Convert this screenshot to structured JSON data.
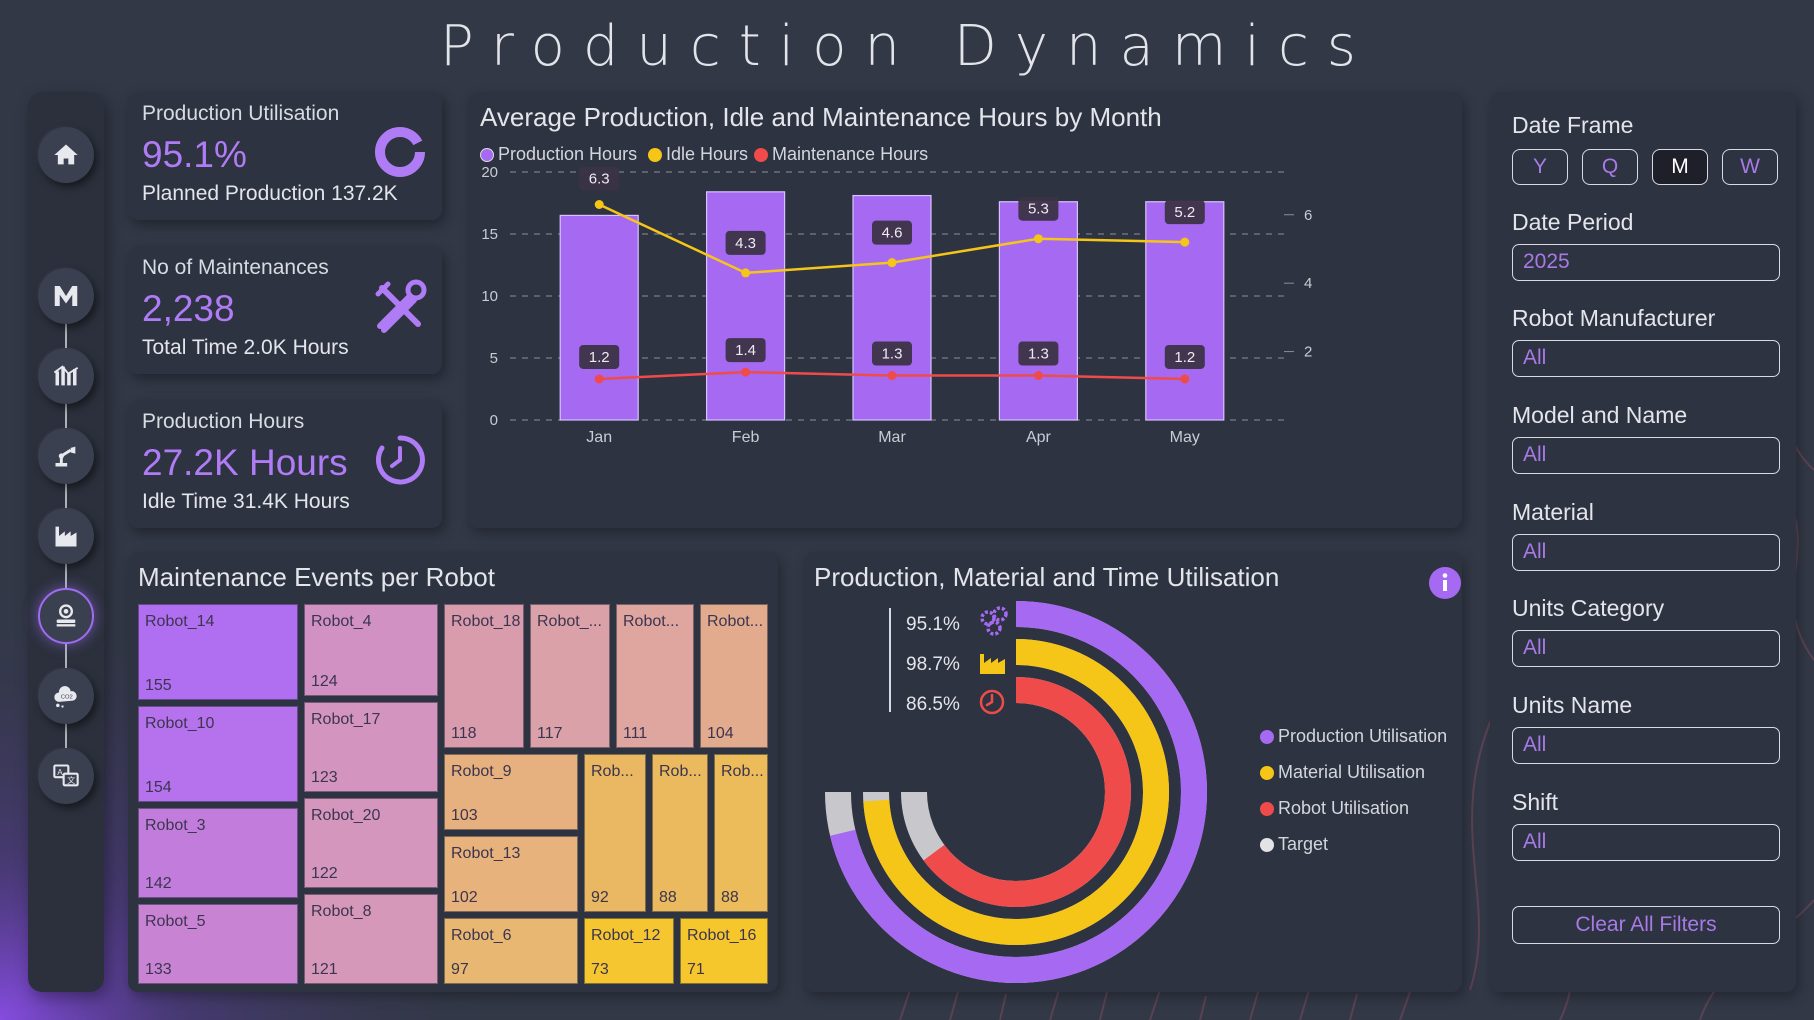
{
  "title": "Production Dynamics",
  "kpis": [
    {
      "title": "Production Utilisation",
      "value": "95.1%",
      "sub": "Planned Production 137.2K",
      "icon": "donut-icon"
    },
    {
      "title": "No of Maintenances",
      "value": "2,238",
      "sub": "Total Time 2.0K Hours",
      "icon": "tools-icon"
    },
    {
      "title": "Production Hours",
      "value": "27.2K Hours",
      "sub": "Idle Time 31.4K Hours",
      "icon": "timer-icon"
    }
  ],
  "nav": [
    "home-icon",
    "m-logo-icon",
    "chart-grid-icon",
    "robot-arm-icon",
    "factory-icon",
    "robot-monitor-icon",
    "co2-cloud-icon",
    "translate-icon"
  ],
  "bar_chart_title": "Average Production, Idle and Maintenance Hours by Month",
  "treemap_title": "Maintenance Events per Robot",
  "radial_title": "Production, Material and Time Utilisation",
  "chart_data": [
    {
      "type": "bar",
      "title": "Average Production, Idle and Maintenance Hours by Month",
      "categories": [
        "Jan",
        "Feb",
        "Mar",
        "Apr",
        "May"
      ],
      "legend": [
        "Production Hours",
        "Idle Hours",
        "Maintenance Hours"
      ],
      "series": [
        {
          "name": "Production Hours",
          "kind": "bar",
          "axis": "left",
          "values": [
            16.5,
            18.4,
            18.1,
            17.6,
            17.6
          ],
          "color": "#a66af2"
        },
        {
          "name": "Idle Hours",
          "kind": "line",
          "axis": "right",
          "values": [
            6.3,
            4.3,
            4.6,
            5.3,
            5.2
          ],
          "color": "#f5c518"
        },
        {
          "name": "Maintenance Hours",
          "kind": "line",
          "axis": "right",
          "values": [
            1.2,
            1.4,
            1.3,
            1.3,
            1.2
          ],
          "color": "#ef4b4b"
        }
      ],
      "y_left_ticks": [
        "0",
        "5",
        "10",
        "15",
        "20"
      ],
      "y_right_ticks": [
        "2",
        "4",
        "6"
      ],
      "ylim_left": [
        0,
        20
      ],
      "ylim_right": [
        0,
        7.25
      ]
    },
    {
      "type": "treemap",
      "title": "Maintenance Events per Robot",
      "items": [
        {
          "name": "Robot_14",
          "value": 155
        },
        {
          "name": "Robot_10",
          "value": 154
        },
        {
          "name": "Robot_3",
          "value": 142
        },
        {
          "name": "Robot_5",
          "value": 133
        },
        {
          "name": "Robot_4",
          "value": 124
        },
        {
          "name": "Robot_17",
          "value": 123
        },
        {
          "name": "Robot_20",
          "value": 122
        },
        {
          "name": "Robot_8",
          "value": 121
        },
        {
          "name": "Robot_18",
          "value": 118
        },
        {
          "name": "Robot_...",
          "value": 117
        },
        {
          "name": "Robot...",
          "value": 111
        },
        {
          "name": "Robot...",
          "value": 104
        },
        {
          "name": "Robot_9",
          "value": 103
        },
        {
          "name": "Robot_13",
          "value": 102
        },
        {
          "name": "Robot_6",
          "value": 97
        },
        {
          "name": "Rob...",
          "value": 92
        },
        {
          "name": "Rob...",
          "value": 88
        },
        {
          "name": "Rob...",
          "value": 88
        },
        {
          "name": "Robot_12",
          "value": 73
        },
        {
          "name": "Robot_16",
          "value": 71
        }
      ]
    },
    {
      "type": "radial-bar",
      "title": "Production, Material and Time Utilisation",
      "series": [
        {
          "name": "Production Utilisation",
          "value": 95.1,
          "label": "95.1%",
          "color": "#a66af2",
          "icon": "gears-icon"
        },
        {
          "name": "Material Utilisation",
          "value": 98.7,
          "label": "98.7%",
          "color": "#f5c518",
          "icon": "factory-icon"
        },
        {
          "name": "Robot Utilisation",
          "value": 86.5,
          "label": "86.5%",
          "color": "#ef4b4b",
          "icon": "timer-icon"
        }
      ],
      "legend": [
        "Production Utilisation",
        "Material Utilisation",
        "Robot Utilisation",
        "Target"
      ],
      "target_color": "#c8c8cc"
    }
  ],
  "filters": {
    "date_frame_label": "Date Frame",
    "date_frame_options": [
      "Y",
      "Q",
      "M",
      "W"
    ],
    "date_frame_selected": "M",
    "fields": [
      {
        "label": "Date Period",
        "value": "2025"
      },
      {
        "label": "Robot Manufacturer",
        "value": "All"
      },
      {
        "label": "Model and Name",
        "value": "All"
      },
      {
        "label": "Material",
        "value": "All"
      },
      {
        "label": "Units Category",
        "value": "All"
      },
      {
        "label": "Units Name",
        "value": "All"
      },
      {
        "label": "Shift",
        "value": "All"
      }
    ],
    "clear_label": "Clear All Filters"
  },
  "info_icon": "info-icon",
  "colors": {
    "accent": "#a66af2",
    "yellow": "#f5c518",
    "red": "#ef4b4b",
    "bg": "#323846",
    "panel": "#2d3340"
  }
}
